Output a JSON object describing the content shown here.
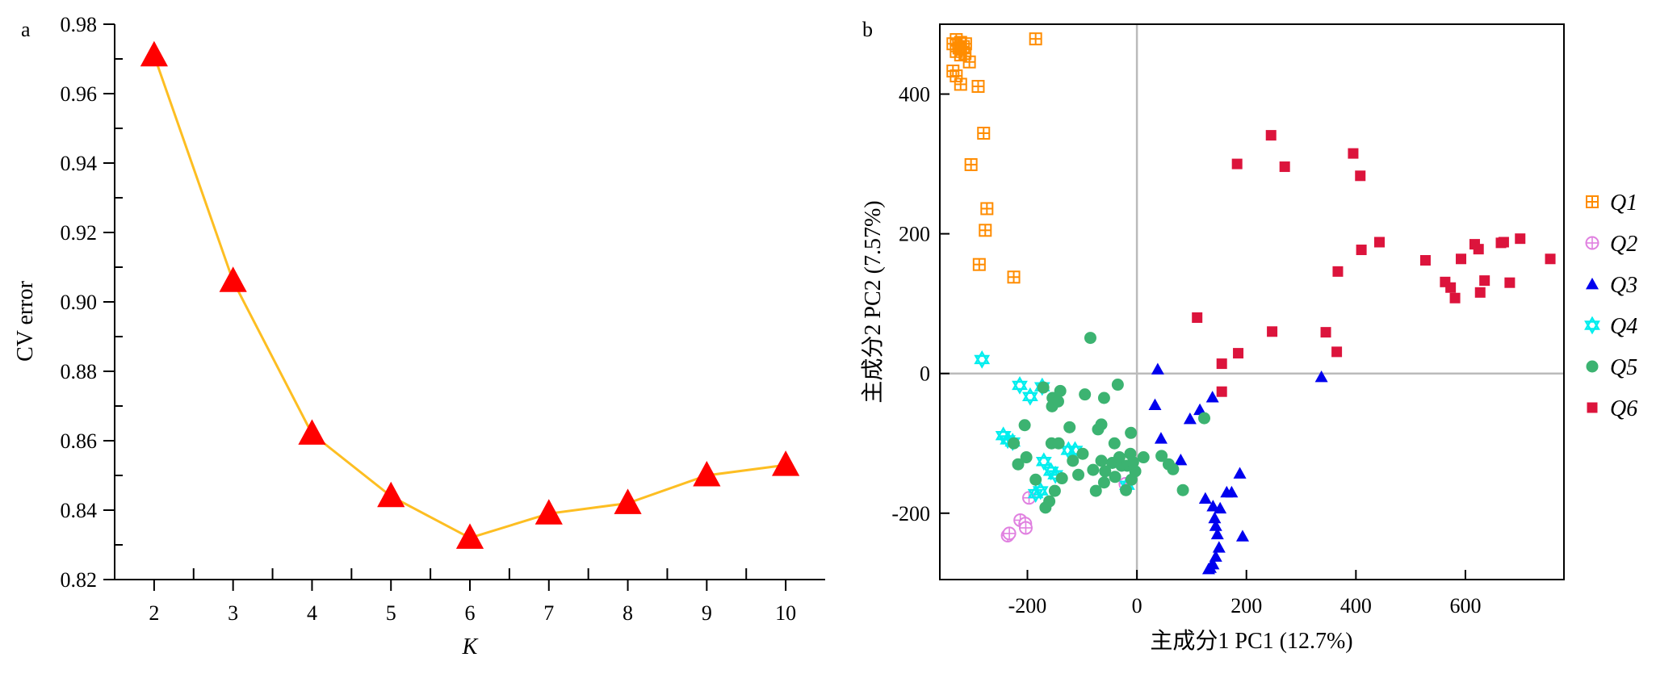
{
  "colors": {
    "curve": "#FDBE22",
    "marker_a": "#FF0000",
    "axis": "#000000",
    "zero_lines": "#BBBBBB"
  },
  "chart_data": [
    {
      "type": "line",
      "panel_label": "a",
      "xlabel": "K",
      "ylabel": "CV error",
      "x": [
        2,
        3,
        4,
        5,
        6,
        7,
        8,
        9,
        10
      ],
      "series": [
        {
          "values": [
            0.971,
            0.906,
            0.862,
            0.844,
            0.832,
            0.839,
            0.842,
            0.85,
            0.853
          ]
        }
      ],
      "xlim": [
        1.5,
        10.5
      ],
      "ylim": [
        0.82,
        0.98
      ],
      "xticks": [
        2,
        3,
        4,
        5,
        6,
        7,
        8,
        9,
        10
      ],
      "yticks": [
        0.82,
        0.84,
        0.86,
        0.88,
        0.9,
        0.92,
        0.94,
        0.96,
        0.98
      ],
      "ytick_labels": [
        "0.82",
        "0.84",
        "0.86",
        "0.88",
        "0.90",
        "0.92",
        "0.94",
        "0.96",
        "0.98"
      ],
      "marker": "triangle",
      "grid": false
    },
    {
      "type": "scatter",
      "panel_label": "b",
      "xlabel": "主成分1 PC1 (12.7%)",
      "ylabel": "主成分2  PC2 (7.57%)",
      "xlim": [
        -360,
        780
      ],
      "ylim": [
        -295,
        500
      ],
      "xticks": [
        -200,
        0,
        200,
        400,
        600
      ],
      "yticks": [
        -200,
        0,
        200,
        400
      ],
      "grid": false,
      "zero_lines": true,
      "legend_position": "right",
      "series": [
        {
          "name": "Q1",
          "color": "#FF8C00",
          "marker": "square-grid",
          "points": [
            [
              -336,
              472
            ],
            [
              -330,
              478
            ],
            [
              -325,
              466
            ],
            [
              -322,
              474
            ],
            [
              -317,
              468
            ],
            [
              -313,
              472
            ],
            [
              -330,
              461
            ],
            [
              -322,
              456
            ],
            [
              -314,
              458
            ],
            [
              -306,
              446
            ],
            [
              -336,
              433
            ],
            [
              -330,
              426
            ],
            [
              -322,
              414
            ],
            [
              -185,
              479
            ],
            [
              -290,
              411
            ],
            [
              -280,
              344
            ],
            [
              -303,
              299
            ],
            [
              -274,
              236
            ],
            [
              -277,
              205
            ],
            [
              -288,
              156
            ],
            [
              -225,
              138
            ]
          ]
        },
        {
          "name": "Q2",
          "color": "#E080E0",
          "marker": "circle-cross",
          "points": [
            [
              -236,
              -232
            ],
            [
              -233,
              -229
            ],
            [
              -213,
              -210
            ],
            [
              -204,
              -215
            ],
            [
              -203,
              -221
            ],
            [
              -197,
              -178
            ],
            [
              -21,
              -158
            ]
          ]
        },
        {
          "name": "Q3",
          "color": "#0000EE",
          "marker": "triangle",
          "points": [
            [
              38,
              6
            ],
            [
              33,
              -45
            ],
            [
              44,
              -93
            ],
            [
              97,
              -65
            ],
            [
              115,
              -52
            ],
            [
              138,
              -34
            ],
            [
              80,
              -124
            ],
            [
              125,
              -179
            ],
            [
              139,
              -190
            ],
            [
              152,
              -193
            ],
            [
              164,
              -170
            ],
            [
              173,
              -170
            ],
            [
              188,
              -143
            ],
            [
              337,
              -5
            ],
            [
              142,
              -207
            ],
            [
              144,
              -218
            ],
            [
              147,
              -230
            ],
            [
              150,
              -249
            ],
            [
              144,
              -262
            ],
            [
              139,
              -273
            ],
            [
              131,
              -280
            ],
            [
              134,
              -278
            ],
            [
              193,
              -233
            ]
          ]
        },
        {
          "name": "Q4",
          "color": "#00EEEE",
          "marker": "star",
          "points": [
            [
              -283,
              20
            ],
            [
              -214,
              -17
            ],
            [
              -195,
              -33
            ],
            [
              -173,
              -19
            ],
            [
              -244,
              -89
            ],
            [
              -236,
              -95
            ],
            [
              -227,
              -98
            ],
            [
              -170,
              -126
            ],
            [
              -157,
              -140
            ],
            [
              -149,
              -145
            ],
            [
              -125,
              -110
            ],
            [
              -113,
              -110
            ],
            [
              -176,
              -168
            ],
            [
              -185,
              -172
            ],
            [
              -18,
              -160
            ]
          ]
        },
        {
          "name": "Q5",
          "color": "#3CB371",
          "marker": "circle",
          "points": [
            [
              -85,
              51
            ],
            [
              -171,
              -20
            ],
            [
              -154,
              -35
            ],
            [
              -155,
              -47
            ],
            [
              -144,
              -40
            ],
            [
              -140,
              -25
            ],
            [
              -95,
              -30
            ],
            [
              -60,
              -35
            ],
            [
              -35,
              -16
            ],
            [
              -205,
              -74
            ],
            [
              -225,
              -100
            ],
            [
              -156,
              -100
            ],
            [
              -143,
              -100
            ],
            [
              -123,
              -77
            ],
            [
              -99,
              -115
            ],
            [
              -117,
              -125
            ],
            [
              -71,
              -80
            ],
            [
              -65,
              -73
            ],
            [
              -41,
              -100
            ],
            [
              -11,
              -85
            ],
            [
              -3,
              -140
            ],
            [
              -80,
              -138
            ],
            [
              -65,
              -125
            ],
            [
              -58,
              -140
            ],
            [
              -45,
              -128
            ],
            [
              -32,
              -120
            ],
            [
              -28,
              -132
            ],
            [
              -18,
              -132
            ],
            [
              -12,
              -115
            ],
            [
              -7,
              -127
            ],
            [
              12,
              -120
            ],
            [
              45,
              -118
            ],
            [
              58,
              -130
            ],
            [
              66,
              -137
            ],
            [
              84,
              -167
            ],
            [
              123,
              -64
            ],
            [
              -10,
              -152
            ],
            [
              -20,
              -167
            ],
            [
              -40,
              -148
            ],
            [
              -60,
              -156
            ],
            [
              -75,
              -168
            ],
            [
              -107,
              -145
            ],
            [
              -137,
              -150
            ],
            [
              -150,
              -168
            ],
            [
              -160,
              -183
            ],
            [
              -167,
              -192
            ],
            [
              -185,
              -152
            ],
            [
              -202,
              -120
            ],
            [
              -217,
              -130
            ]
          ]
        },
        {
          "name": "Q6",
          "color": "#DC143C",
          "marker": "square",
          "points": [
            [
              245,
              341
            ],
            [
              183,
              300
            ],
            [
              270,
              296
            ],
            [
              395,
              315
            ],
            [
              408,
              283
            ],
            [
              410,
              177
            ],
            [
              443,
              188
            ],
            [
              367,
              146
            ],
            [
              527,
              162
            ],
            [
              563,
              131
            ],
            [
              573,
              123
            ],
            [
              581,
              108
            ],
            [
              592,
              164
            ],
            [
              617,
              185
            ],
            [
              624,
              178
            ],
            [
              627,
              116
            ],
            [
              635,
              133
            ],
            [
              665,
              187
            ],
            [
              670,
              188
            ],
            [
              681,
              130
            ],
            [
              700,
              193
            ],
            [
              755,
              164
            ],
            [
              110,
              80
            ],
            [
              155,
              14
            ],
            [
              185,
              29
            ],
            [
              247,
              60
            ],
            [
              345,
              59
            ],
            [
              365,
              31
            ],
            [
              155,
              -26
            ]
          ]
        }
      ]
    }
  ]
}
